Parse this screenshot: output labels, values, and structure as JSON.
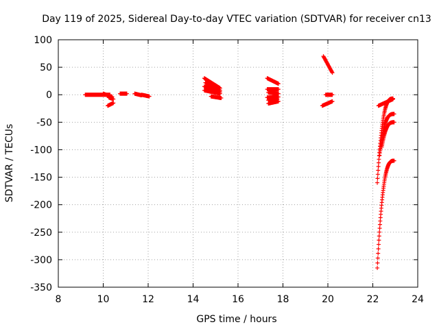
{
  "chart_data": {
    "type": "scatter",
    "title": "Day 119 of 2025, Sidereal Day-to-day VTEC variation (SDTVAR) for receiver cn13",
    "xlabel": "GPS time / hours",
    "ylabel": "SDTVAR / TECUs",
    "xlim": [
      8,
      24
    ],
    "ylim": [
      -350,
      100
    ],
    "xticks": [
      "8",
      "10",
      "12",
      "14",
      "16",
      "18",
      "20",
      "22",
      "24"
    ],
    "yticks": [
      "100",
      "50",
      "0",
      "-50",
      "-100",
      "-150",
      "-200",
      "-250",
      "-300",
      "-350"
    ],
    "grid": true,
    "marker": "+",
    "marker_color": "#ff0000",
    "segments": [
      {
        "x0": 9.2,
        "x1": 10.3,
        "y0": 0,
        "y1": 0
      },
      {
        "x0": 10.0,
        "x1": 10.4,
        "y0": 2,
        "y1": -4
      },
      {
        "x0": 10.25,
        "x1": 10.45,
        "y0": -5,
        "y1": -8
      },
      {
        "x0": 10.2,
        "x1": 10.45,
        "y0": -20,
        "y1": -15
      },
      {
        "x0": 10.75,
        "x1": 11.05,
        "y0": 2,
        "y1": 2
      },
      {
        "x0": 11.4,
        "x1": 11.7,
        "y0": 2,
        "y1": -1
      },
      {
        "x0": 11.7,
        "x1": 12.05,
        "y0": 0,
        "y1": -3
      },
      {
        "x0": 14.5,
        "x1": 15.2,
        "y0": 30,
        "y1": 12
      },
      {
        "x0": 14.55,
        "x1": 15.2,
        "y0": 22,
        "y1": 8
      },
      {
        "x0": 14.5,
        "x1": 15.2,
        "y0": 15,
        "y1": 5
      },
      {
        "x0": 14.5,
        "x1": 15.2,
        "y0": 8,
        "y1": 2
      },
      {
        "x0": 14.8,
        "x1": 15.25,
        "y0": -3,
        "y1": -6
      },
      {
        "x0": 17.3,
        "x1": 17.8,
        "y0": 30,
        "y1": 20
      },
      {
        "x0": 17.3,
        "x1": 17.8,
        "y0": 10,
        "y1": 10
      },
      {
        "x0": 17.35,
        "x1": 17.8,
        "y0": 4,
        "y1": 2
      },
      {
        "x0": 17.3,
        "x1": 17.8,
        "y0": -5,
        "y1": -4
      },
      {
        "x0": 17.35,
        "x1": 17.75,
        "y0": -10,
        "y1": -8
      },
      {
        "x0": 17.35,
        "x1": 17.8,
        "y0": -16,
        "y1": -12
      },
      {
        "x0": 19.8,
        "x1": 20.2,
        "y0": 70,
        "y1": 40
      },
      {
        "x0": 19.75,
        "x1": 20.2,
        "y0": -20,
        "y1": -12
      },
      {
        "x0": 19.9,
        "x1": 20.2,
        "y0": 0,
        "y1": 0
      },
      {
        "x0": 22.25,
        "x1": 22.9,
        "y0": -20,
        "y1": -8
      }
    ],
    "curves": [
      {
        "x0": 22.2,
        "x1": 22.9,
        "ya": -160,
        "yb": -7,
        "k": 3
      },
      {
        "x0": 22.3,
        "x1": 22.95,
        "ya": -110,
        "yb": -35,
        "k": 3
      },
      {
        "x0": 22.4,
        "x1": 22.95,
        "ya": -95,
        "yb": -50,
        "k": 3
      },
      {
        "x0": 22.2,
        "x1": 22.95,
        "ya": -315,
        "yb": -120,
        "k": 3
      }
    ]
  }
}
